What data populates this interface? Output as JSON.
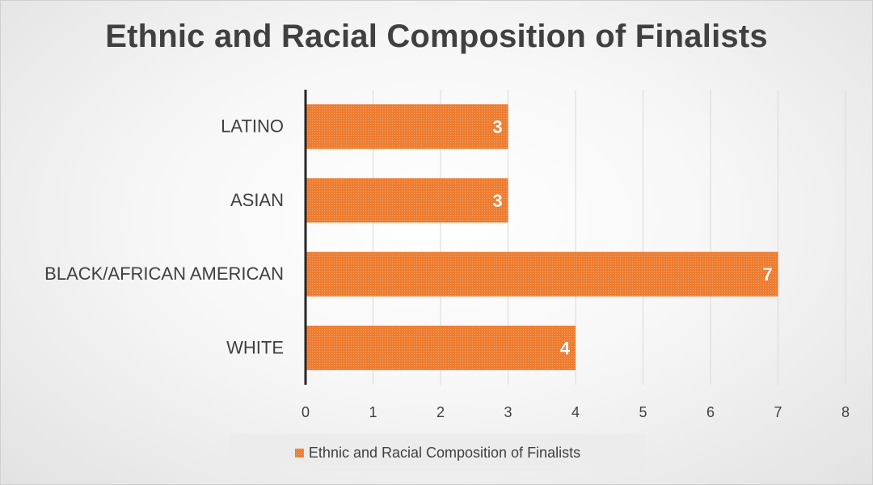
{
  "chart_data": {
    "type": "bar",
    "orientation": "horizontal",
    "title": "Ethnic and Racial Composition of Finalists",
    "categories": [
      "LATINO",
      "ASIAN",
      "BLACK/AFRICAN AMERICAN",
      "WHITE"
    ],
    "series": [
      {
        "name": "Ethnic and Racial Composition of Finalists",
        "values": [
          3,
          3,
          7,
          4
        ]
      }
    ],
    "xlim": [
      0,
      8
    ],
    "xticks": [
      0,
      1,
      2,
      3,
      4,
      5,
      6,
      7,
      8
    ],
    "grid": "vertical",
    "legend": "bottom",
    "data_labels": "inside-end",
    "colors": {
      "bar": "#ed7d31",
      "grid": "#d9d9d9",
      "axis": "#262626",
      "text": "#404040",
      "data_label": "#ffffff"
    }
  }
}
